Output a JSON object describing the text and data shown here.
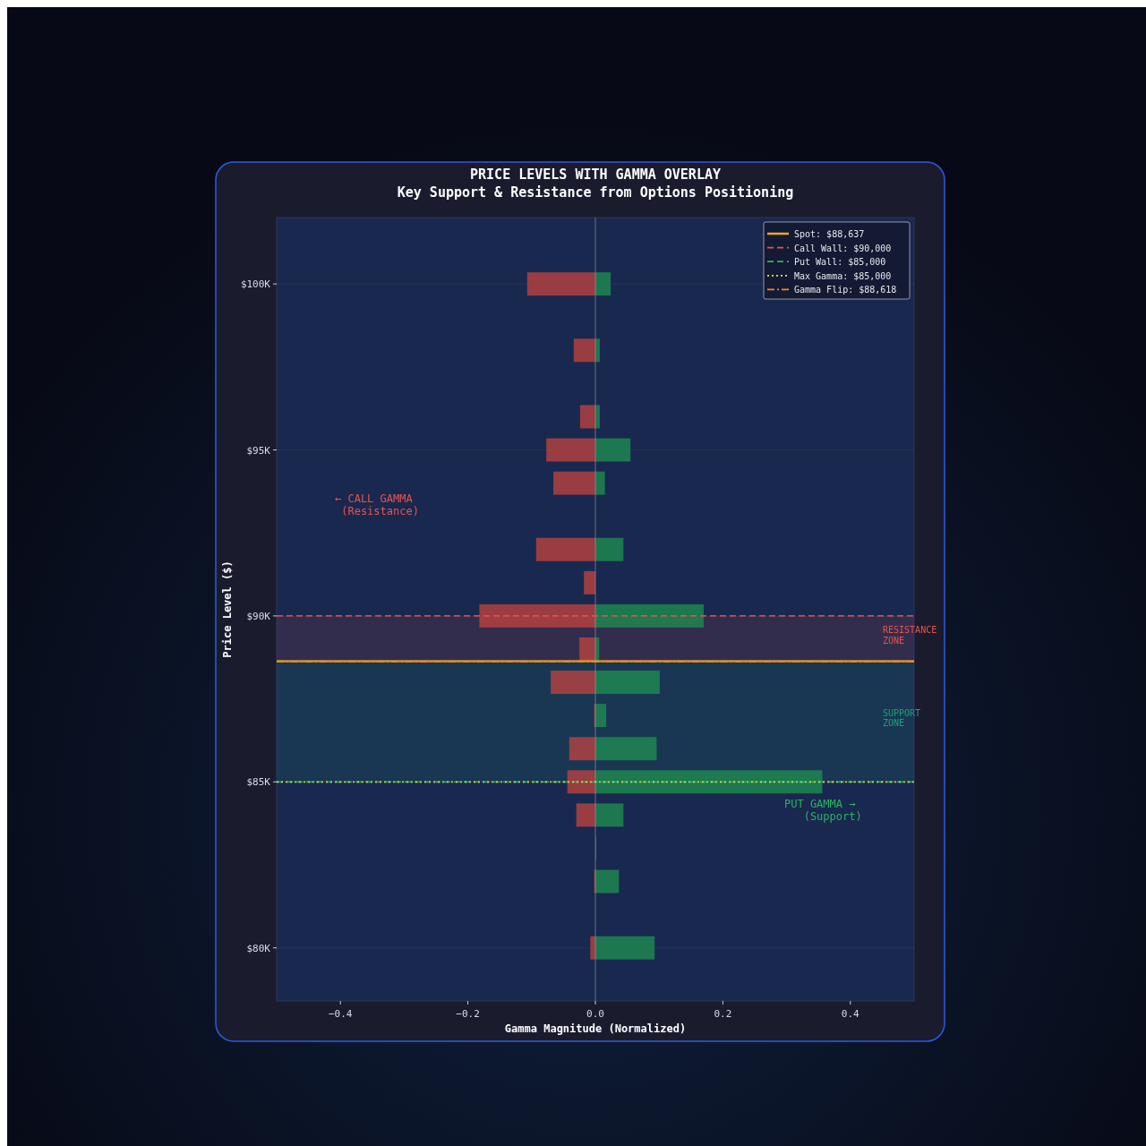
{
  "chart_data": {
    "type": "bar",
    "orientation": "horizontal",
    "title": "PRICE LEVELS WITH GAMMA OVERLAY",
    "subtitle": "Key Support & Resistance from Options Positioning",
    "xlabel": "Gamma Magnitude (Normalized)",
    "ylabel": "Price Level ($)",
    "x": [
      100,
      98,
      96,
      95,
      94,
      92,
      91,
      90,
      89,
      88,
      87,
      86,
      85,
      84,
      83,
      82,
      80
    ],
    "series": [
      {
        "color": "#c4443f",
        "values": [
          -0.107,
          -0.034,
          -0.024,
          -0.077,
          -0.066,
          -0.093,
          -0.018,
          -0.182,
          -0.025,
          -0.07,
          -0.002,
          -0.041,
          -0.044,
          -0.03,
          null,
          -0.002,
          -0.008
        ]
      },
      {
        "color": "#1f9150",
        "values": [
          0.024,
          0.007,
          0.007,
          0.055,
          0.015,
          0.044,
          null,
          0.17,
          0.006,
          0.101,
          0.017,
          0.096,
          0.356,
          0.044,
          0.001,
          0.037,
          0.093
        ]
      }
    ],
    "xlim": [
      -0.5,
      0.5
    ],
    "xticks": [
      {
        "value": -0.4,
        "label": "−0.4"
      },
      {
        "value": -0.2,
        "label": "−0.2"
      },
      {
        "value": 0,
        "label": "0.0"
      },
      0.2,
      0.4
    ],
    "ylim": [
      78.4,
      102
    ],
    "yticks": [
      {
        "value": 80,
        "label": "$80K"
      },
      {
        "value": 85,
        "label": "$85K"
      },
      {
        "value": 90,
        "label": "$90K"
      },
      {
        "value": 95,
        "label": "$95K"
      },
      {
        "value": 100,
        "label": "$100K"
      }
    ],
    "ref_lines": [
      {
        "axis": "y",
        "value": 88.637,
        "label": "Spot: $88,637",
        "color": "#f5a623",
        "line_style": "solid"
      },
      {
        "axis": "y",
        "value": 90,
        "label": "Call Wall: $90,000",
        "color": "#e8534f",
        "line_style": "dashed"
      },
      {
        "axis": "y",
        "value": 85,
        "label": "Put Wall: $85,000",
        "color": "#27b562",
        "line_style": "dashed"
      },
      {
        "axis": "y",
        "value": 85,
        "label": "Max Gamma: $85,000",
        "color": "#e5e34a",
        "line_style": "dotted"
      },
      {
        "axis": "y",
        "value": 88.618,
        "label": "Gamma Flip: $88,618",
        "color": "#f08a24",
        "line_style": "dashdot"
      }
    ],
    "bands": [
      {
        "axis": "y",
        "from": 88.637,
        "to": 90,
        "label": "RESISTANCE\nZONE",
        "color": "#e8534f"
      },
      {
        "axis": "y",
        "from": 85,
        "to": 88.637,
        "label": "SUPPORT\nZONE",
        "color": "#1fa07a"
      }
    ],
    "annotations": [
      "← CALL GAMMA\n (Resistance)",
      "PUT GAMMA →\n   (Support)"
    ],
    "legend": "top right",
    "grid": "y"
  }
}
